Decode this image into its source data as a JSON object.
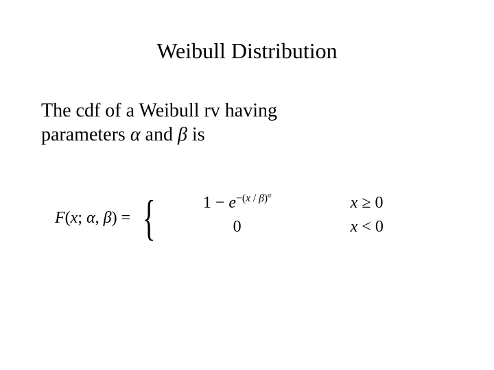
{
  "title": "Weibull Distribution",
  "body": {
    "line1": "The cdf of a Weibull rv having",
    "line2_prefix": "parameters",
    "alpha": "α",
    "and": " and ",
    "beta": "β",
    "is": " is"
  },
  "formula": {
    "lhs_F": "F",
    "lhs_open": "(",
    "lhs_x": "x",
    "lhs_semi": "; ",
    "lhs_alpha": "α",
    "lhs_comma": ", ",
    "lhs_beta": "β",
    "lhs_close": ") = ",
    "case1_prefix": "1 − ",
    "case1_e": "e",
    "case1_exp_open": "−(",
    "case1_exp_x": "x",
    "case1_exp_slash": " / ",
    "case1_exp_beta": "β",
    "case1_exp_close": ")",
    "case1_exp_alpha": "α",
    "case1_cond_x": "x",
    "case1_cond_op": " ≥ 0",
    "case2_expr": "0",
    "case2_cond_x": "x",
    "case2_cond_op": " < 0"
  },
  "style": {
    "background": "#ffffff",
    "text_color": "#000000",
    "title_fontsize": 32,
    "body_fontsize": 28,
    "formula_fontsize": 24,
    "font_family": "Times New Roman"
  }
}
